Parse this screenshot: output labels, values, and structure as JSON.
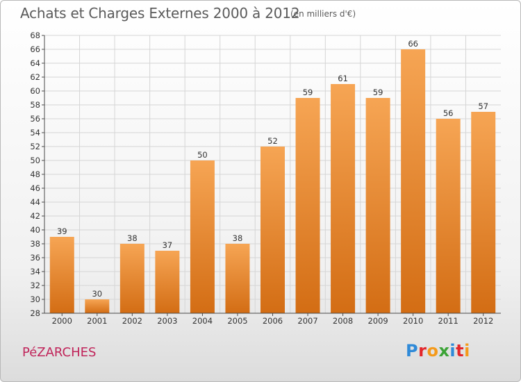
{
  "header": {
    "title": "Achats et Charges Externes 2000 à 2012",
    "subtitle": "(en milliers d'€)"
  },
  "footer": {
    "place": "PéZARCHES",
    "logo_letters": [
      "P",
      "r",
      "o",
      "x",
      "i",
      "t",
      "i"
    ],
    "logo_colors": [
      "#2f8ad8",
      "#e3262b",
      "#f49a1a",
      "#3aa335",
      "#2f8ad8",
      "#e3262b",
      "#f49a1a"
    ]
  },
  "colors": {
    "bar_top": "#f6a554",
    "bar_bottom": "#d36d14",
    "grid": "#d5d5d5",
    "axis": "#4a4a4a",
    "label": "#333333"
  },
  "chart_data": {
    "type": "bar",
    "categories": [
      "2000",
      "2001",
      "2002",
      "2003",
      "2004",
      "2005",
      "2006",
      "2007",
      "2008",
      "2009",
      "2010",
      "2011",
      "2012"
    ],
    "values": [
      39,
      30,
      38,
      37,
      50,
      38,
      52,
      59,
      61,
      59,
      66,
      56,
      57
    ],
    "ylim": [
      28,
      68
    ],
    "yticks": [
      28,
      30,
      32,
      34,
      36,
      38,
      40,
      42,
      44,
      46,
      48,
      50,
      52,
      54,
      56,
      58,
      60,
      62,
      64,
      66,
      68
    ],
    "grid": true
  }
}
